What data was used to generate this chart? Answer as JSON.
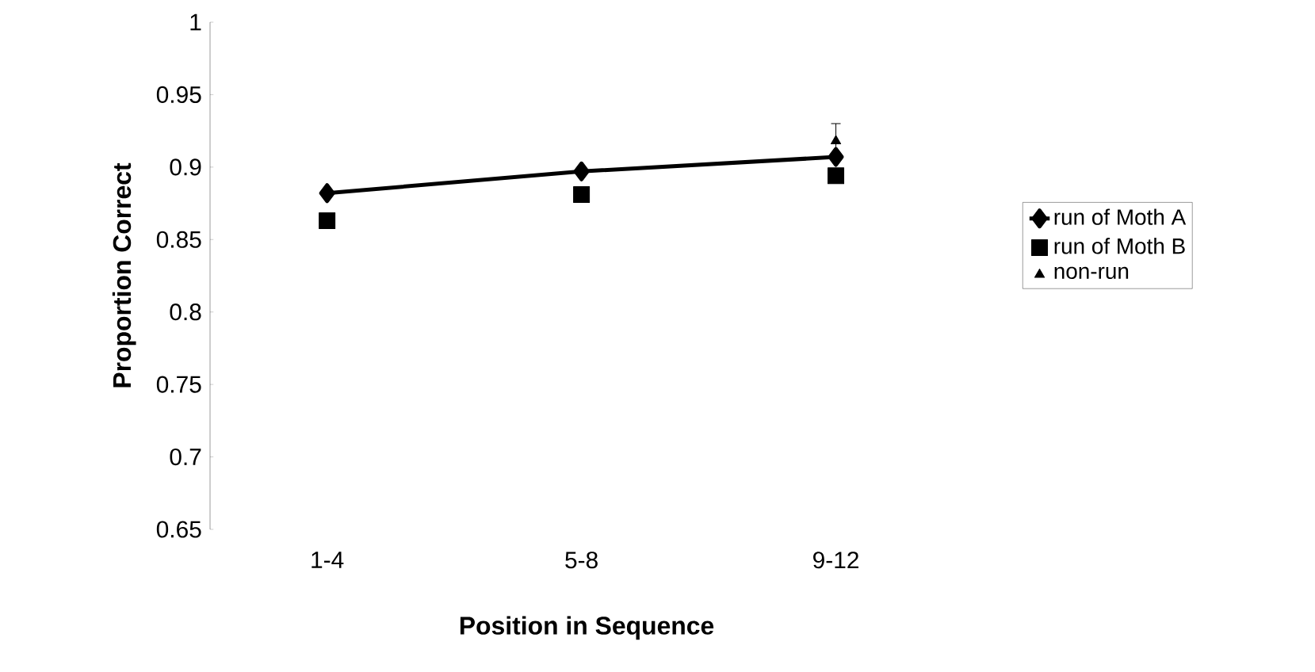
{
  "chart_data": {
    "type": "line",
    "xlabel": "Position in Sequence",
    "ylabel": "Proportion Correct",
    "categories": [
      "1-4",
      "5-8",
      "9-12"
    ],
    "series": [
      {
        "name": "run of Moth A",
        "color": "#000000",
        "values": [
          0.882,
          0.897,
          0.907
        ],
        "marker": "diamond",
        "line_style": "solid"
      },
      {
        "name": "run of Moth B",
        "type": "scatter",
        "color": "#000000",
        "values": [
          0.863,
          0.881,
          0.894
        ],
        "marker": "square"
      },
      {
        "name": "non-run",
        "type": "scatter",
        "color": "#000000",
        "values": [
          null,
          null,
          0.918
        ],
        "marker": "triangle",
        "errors": [
          null,
          null,
          0.012
        ]
      }
    ],
    "ylim": [
      0.65,
      1
    ],
    "yticks": [
      0.65,
      0.7,
      0.75,
      0.8,
      0.85,
      0.9,
      0.95,
      1
    ],
    "grid": false,
    "legend": "right"
  }
}
